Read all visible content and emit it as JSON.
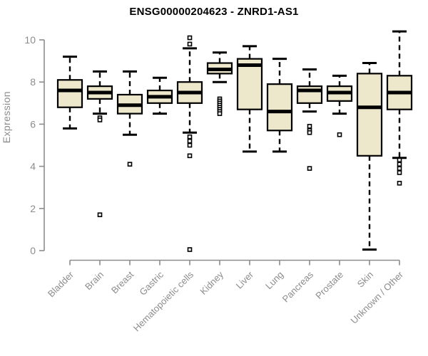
{
  "title": "ENSG00000204623 - ZNRD1-AS1",
  "chart_data": {
    "type": "boxplot",
    "title": "ENSG00000204623 - ZNRD1-AS1",
    "ylabel": "Expression",
    "xlabel": "",
    "ylim": [
      0,
      10.5
    ],
    "yticks": [
      0,
      2,
      4,
      6,
      8,
      10
    ],
    "grid": false,
    "legend": false,
    "categories": [
      "Bladder",
      "Brain",
      "Breast",
      "Gastric",
      "Hematopoietic cells",
      "Kidney",
      "Liver",
      "Lung",
      "Pancreas",
      "Prostate",
      "Skin",
      "Unknown / Other"
    ],
    "series": [
      {
        "category": "Bladder",
        "whisker_low": 5.8,
        "q1": 6.8,
        "median": 7.6,
        "q3": 8.1,
        "whisker_high": 9.2,
        "outliers": []
      },
      {
        "category": "Brain",
        "whisker_low": 6.5,
        "q1": 7.2,
        "median": 7.5,
        "q3": 7.8,
        "whisker_high": 8.5,
        "outliers": [
          6.3,
          6.2,
          1.7
        ]
      },
      {
        "category": "Breast",
        "whisker_low": 5.5,
        "q1": 6.5,
        "median": 6.9,
        "q3": 7.4,
        "whisker_high": 8.5,
        "outliers": [
          4.1
        ]
      },
      {
        "category": "Gastric",
        "whisker_low": 6.5,
        "q1": 7.0,
        "median": 7.3,
        "q3": 7.6,
        "whisker_high": 8.2,
        "outliers": []
      },
      {
        "category": "Hematopoietic cells",
        "whisker_low": 5.6,
        "q1": 7.0,
        "median": 7.5,
        "q3": 8.0,
        "whisker_high": 9.6,
        "outliers": [
          10.1,
          9.8,
          5.4,
          5.2,
          5.0,
          4.5,
          0.05
        ]
      },
      {
        "category": "Kidney",
        "whisker_low": 8.0,
        "q1": 8.4,
        "median": 8.6,
        "q3": 8.9,
        "whisker_high": 9.4,
        "outliers": [
          7.2,
          7.1,
          7.0,
          6.9,
          6.8,
          6.7,
          6.6,
          6.5
        ]
      },
      {
        "category": "Liver",
        "whisker_low": 4.7,
        "q1": 6.7,
        "median": 8.8,
        "q3": 9.1,
        "whisker_high": 9.7,
        "outliers": []
      },
      {
        "category": "Lung",
        "whisker_low": 4.7,
        "q1": 5.7,
        "median": 6.6,
        "q3": 7.9,
        "whisker_high": 9.1,
        "outliers": []
      },
      {
        "category": "Pancreas",
        "whisker_low": 6.6,
        "q1": 7.0,
        "median": 7.6,
        "q3": 7.8,
        "whisker_high": 8.6,
        "outliers": [
          5.9,
          5.7,
          5.6,
          3.9
        ]
      },
      {
        "category": "Prostate",
        "whisker_low": 6.5,
        "q1": 7.1,
        "median": 7.5,
        "q3": 7.8,
        "whisker_high": 8.3,
        "outliers": [
          5.5
        ]
      },
      {
        "category": "Skin",
        "whisker_low": 0.05,
        "q1": 4.5,
        "median": 6.8,
        "q3": 8.4,
        "whisker_high": 8.9,
        "outliers": []
      },
      {
        "category": "Unknown / Other",
        "whisker_low": 4.4,
        "q1": 6.7,
        "median": 7.5,
        "q3": 8.3,
        "whisker_high": 10.4,
        "outliers": [
          4.3,
          4.1,
          3.9,
          3.7,
          3.2
        ]
      }
    ],
    "colors": {
      "box_fill": "#EDE7CB",
      "box_border": "#000000",
      "median": "#000000",
      "whisker": "#000000",
      "outlier_stroke": "#000000",
      "outlier_fill": "#ffffff",
      "axis": "#8C8C8C",
      "tick_label": "#8C8C8C",
      "title": "#000000",
      "background": "#FFFFFF"
    }
  }
}
